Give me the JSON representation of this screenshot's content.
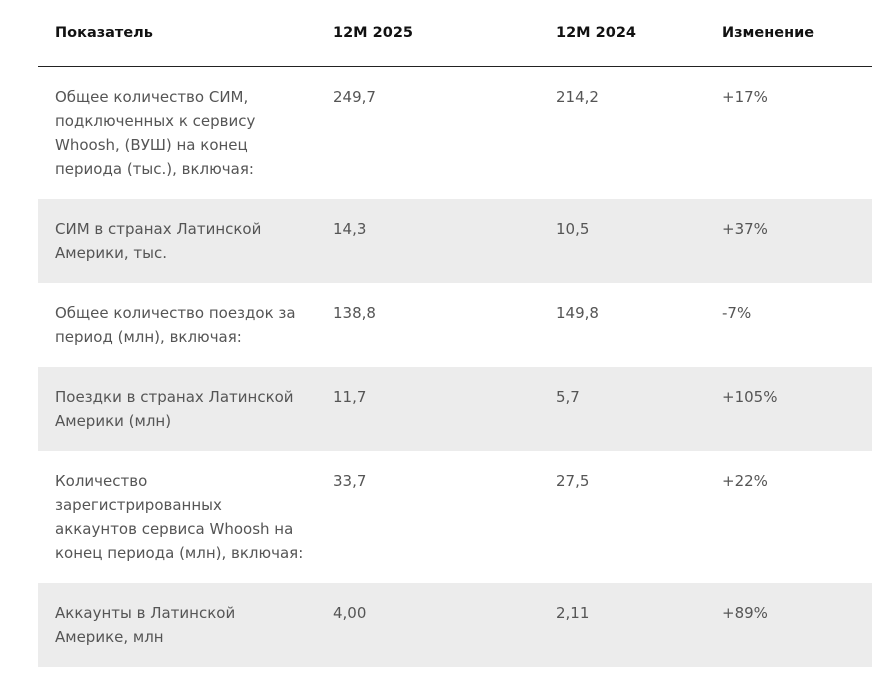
{
  "table": {
    "header": [
      "Показатель",
      "12М 2025",
      "12М 2024",
      "Изменение"
    ],
    "rows": [
      [
        "Общее количество СИМ, подключенных к сервису Whoosh, (ВУШ) на конец периода (тыс.), включая:",
        "249,7",
        "214,2",
        "+17%"
      ],
      [
        "СИМ в странах Латинской Америки, тыс.",
        "14,3",
        "10,5",
        "+37%"
      ],
      [
        "Общее количество поездок за период (млн), включая:",
        "138,8",
        "149,8",
        "-7%"
      ],
      [
        "Поездки в странах Латинской Америки (млн)",
        "11,7",
        "5,7",
        "+105%"
      ],
      [
        "Количество зарегистрированных аккаунтов сервиса Whoosh на конец периода (млн), включая:",
        "33,7",
        "27,5",
        "+22%"
      ],
      [
        "Аккаунты в Латинской Америке, млн",
        "4,00",
        "2,11",
        "+89%"
      ]
    ]
  }
}
